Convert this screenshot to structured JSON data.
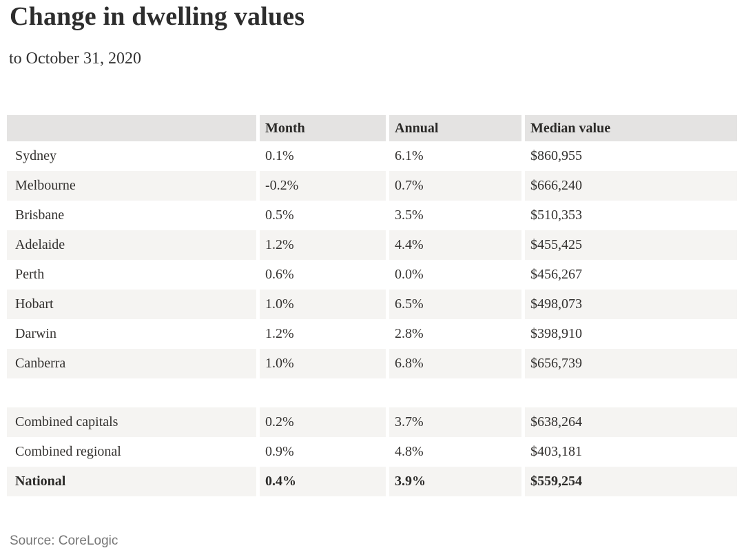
{
  "header": {
    "title": "Change in dwelling values",
    "subtitle": "to October 31, 2020"
  },
  "table": {
    "columns": [
      "",
      "Month",
      "Annual",
      "Median value"
    ],
    "rows": [
      {
        "region": "Sydney",
        "month": "0.1%",
        "annual": "6.1%",
        "median": "$860,955"
      },
      {
        "region": "Melbourne",
        "month": "-0.2%",
        "annual": "0.7%",
        "median": "$666,240"
      },
      {
        "region": "Brisbane",
        "month": "0.5%",
        "annual": "3.5%",
        "median": "$510,353"
      },
      {
        "region": "Adelaide",
        "month": "1.2%",
        "annual": "4.4%",
        "median": "$455,425"
      },
      {
        "region": "Perth",
        "month": "0.6%",
        "annual": "0.0%",
        "median": "$456,267"
      },
      {
        "region": "Hobart",
        "month": "1.0%",
        "annual": "6.5%",
        "median": "$498,073"
      },
      {
        "region": "Darwin",
        "month": "1.2%",
        "annual": "2.8%",
        "median": "$398,910"
      },
      {
        "region": "Canberra",
        "month": "1.0%",
        "annual": "6.8%",
        "median": "$656,739"
      }
    ],
    "summary": [
      {
        "region": "Combined capitals",
        "month": "0.2%",
        "annual": "3.7%",
        "median": "$638,264"
      },
      {
        "region": "Combined regional",
        "month": "0.9%",
        "annual": "4.8%",
        "median": "$403,181"
      },
      {
        "region": "National",
        "month": "0.4%",
        "annual": "3.9%",
        "median": "$559,254"
      }
    ]
  },
  "footer": {
    "source": "Source: CoreLogic"
  },
  "colors": {
    "header_bg": "#e4e3e2",
    "row_alt_bg": "#f5f4f2",
    "text": "#343230",
    "title_text": "#2d2d2d",
    "source_text": "#767676"
  },
  "chart_data": {
    "type": "table",
    "title": "Change in dwelling values",
    "subtitle": "to October 31, 2020",
    "columns": [
      "Region",
      "Month",
      "Annual",
      "Median value"
    ],
    "rows": [
      [
        "Sydney",
        0.1,
        6.1,
        860955
      ],
      [
        "Melbourne",
        -0.2,
        0.7,
        666240
      ],
      [
        "Brisbane",
        0.5,
        3.5,
        510353
      ],
      [
        "Adelaide",
        1.2,
        4.4,
        455425
      ],
      [
        "Perth",
        0.6,
        0.0,
        456267
      ],
      [
        "Hobart",
        1.0,
        6.5,
        498073
      ],
      [
        "Darwin",
        1.2,
        2.8,
        398910
      ],
      [
        "Canberra",
        1.0,
        6.8,
        656739
      ],
      [
        "Combined capitals",
        0.2,
        3.7,
        638264
      ],
      [
        "Combined regional",
        0.9,
        4.8,
        403181
      ],
      [
        "National",
        0.4,
        3.9,
        559254
      ]
    ],
    "units": {
      "Month": "percent",
      "Annual": "percent",
      "Median value": "AUD"
    },
    "source": "Source: CoreLogic"
  }
}
